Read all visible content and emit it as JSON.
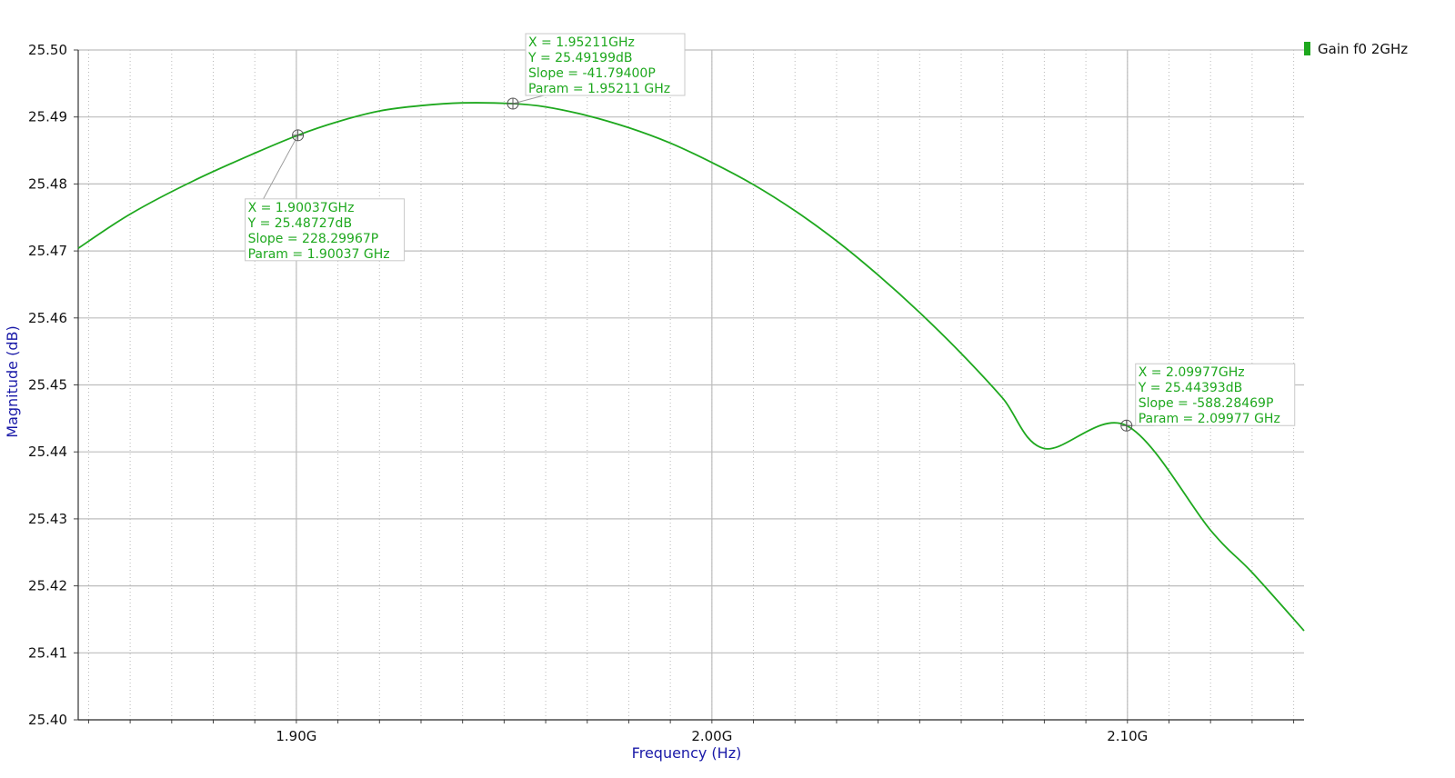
{
  "chart_data": {
    "type": "line",
    "xlabel": "Frequency (Hz)",
    "ylabel": "Magnitude (dB)",
    "xlim": [
      1.8475,
      2.1425
    ],
    "ylim": [
      25.4,
      25.5
    ],
    "x_unit": "GHz",
    "y_ticks": [
      "25.40",
      "25.41",
      "25.42",
      "25.43",
      "25.44",
      "25.45",
      "25.46",
      "25.47",
      "25.48",
      "25.49",
      "25.50"
    ],
    "x_ticks": [
      {
        "value": 1.9,
        "label": "1.90G"
      },
      {
        "value": 2.0,
        "label": "2.00G"
      },
      {
        "value": 2.1,
        "label": "2.10G"
      }
    ],
    "grid": true,
    "legend_position": "top-right",
    "series": [
      {
        "name": "Gain f0 2GHz",
        "color": "#1ea81e",
        "x": [
          1.8475,
          1.86,
          1.875,
          1.89,
          1.90037,
          1.91,
          1.92,
          1.93,
          1.94,
          1.95211,
          1.96,
          1.97,
          1.98,
          1.99,
          2.0,
          2.01,
          2.02,
          2.03,
          2.04,
          2.05,
          2.06,
          2.07,
          2.08,
          2.09,
          2.09977,
          2.11,
          2.12,
          2.13,
          2.1425
        ],
        "values": [
          25.4704,
          25.4755,
          25.4804,
          25.4846,
          25.48727,
          25.4893,
          25.4909,
          25.4917,
          25.4921,
          25.49199,
          25.4915,
          25.4902,
          25.4884,
          25.4861,
          25.4832,
          25.4799,
          25.476,
          25.4715,
          25.4664,
          25.4608,
          25.4547,
          25.448,
          25.4405,
          25.433,
          25.44393,
          25.434,
          25.4283,
          25.422,
          25.4133
        ]
      }
    ],
    "markers": [
      {
        "x": 1.90037,
        "y": 25.48727,
        "lines": [
          "X = 1.90037GHz",
          "Y = 25.48727dB",
          "Slope = 228.29967P",
          "Param = 1.90037 GHz"
        ]
      },
      {
        "x": 1.95211,
        "y": 25.49199,
        "lines": [
          "X = 1.95211GHz",
          "Y = 25.49199dB",
          "Slope = -41.79400P",
          "Param = 1.95211 GHz"
        ]
      },
      {
        "x": 2.09977,
        "y": 25.44393,
        "lines": [
          "X = 2.09977GHz",
          "Y = 25.44393dB",
          "Slope = -588.28469P",
          "Param = 2.09977 GHz"
        ]
      }
    ]
  }
}
